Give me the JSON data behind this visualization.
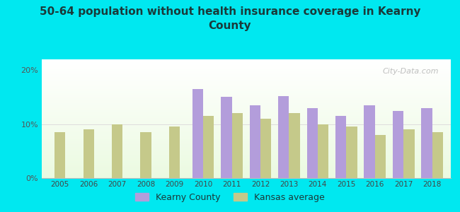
{
  "title": "50-64 population without health insurance coverage in Kearny\nCounty",
  "years": [
    2005,
    2006,
    2007,
    2008,
    2009,
    2010,
    2011,
    2012,
    2013,
    2014,
    2015,
    2016,
    2017,
    2018
  ],
  "kearny_values": [
    null,
    null,
    null,
    null,
    null,
    16.5,
    15.0,
    13.5,
    15.2,
    13.0,
    11.5,
    13.5,
    12.5,
    13.0
  ],
  "kansas_values": [
    8.5,
    9.0,
    10.0,
    8.5,
    9.5,
    11.5,
    12.0,
    11.0,
    12.0,
    10.0,
    9.5,
    8.0,
    9.0,
    8.5
  ],
  "kearny_color": "#b39ddb",
  "kansas_color": "#c5c98a",
  "bg_cyan": "#00e8f0",
  "title_color": "#1a3a3a",
  "ylim": [
    0,
    22
  ],
  "yticks": [
    0,
    10,
    20
  ],
  "ytick_labels": [
    "0%",
    "10%",
    "20%"
  ],
  "bar_width": 0.38,
  "legend_kearny": "Kearny County",
  "legend_kansas": "Kansas average",
  "watermark": "City-Data.com"
}
